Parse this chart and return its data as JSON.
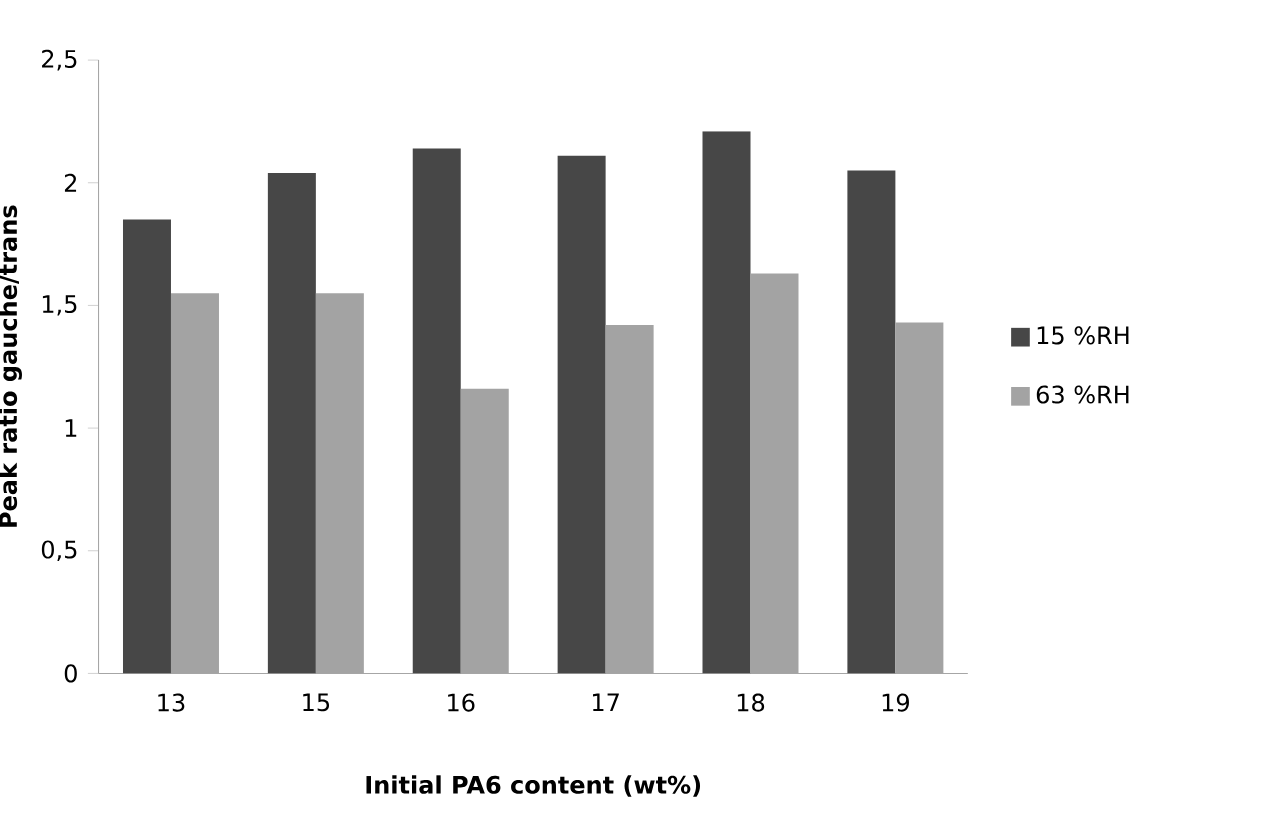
{
  "chart_data": {
    "type": "bar",
    "xlabel": "Initial PA6 content (wt%)",
    "ylabel": "Peak ratio gauche/trans",
    "categories": [
      "13",
      "15",
      "16",
      "17",
      "18",
      "19"
    ],
    "series": [
      {
        "name": "15 %RH",
        "color": "#474747",
        "values": [
          1.85,
          2.04,
          2.14,
          2.11,
          2.21,
          2.05
        ]
      },
      {
        "name": "63 %RH",
        "color": "#a3a3a3",
        "values": [
          1.55,
          1.55,
          1.16,
          1.42,
          1.63,
          1.43
        ]
      }
    ],
    "ylim": [
      0,
      2.5
    ],
    "yticks": [
      0,
      {
        "value": 0.5,
        "label": "0,5"
      },
      1,
      {
        "value": 1.5,
        "label": "1,5"
      },
      2,
      {
        "value": 2.5,
        "label": "2,5"
      }
    ],
    "grid": false,
    "legend": "right"
  }
}
